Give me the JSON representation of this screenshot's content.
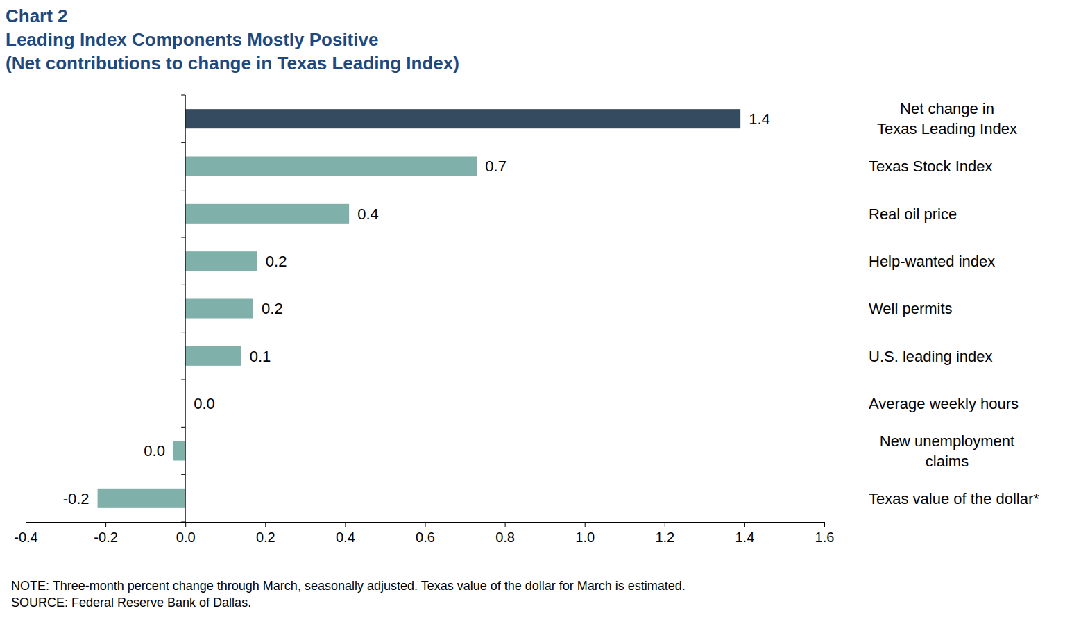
{
  "chart_data": {
    "type": "bar",
    "orientation": "horizontal",
    "title": "Chart 2",
    "subtitle": [
      "Leading Index Components Mostly Positive",
      "(Net contributions to change in Texas Leading Index)"
    ],
    "notes": [
      "NOTE: Three-month percent change through March, seasonally adjusted. Texas value of the dollar for March is estimated.",
      "SOURCE: Federal Reserve Bank of Dallas."
    ],
    "categories": [
      "Net change in\nTexas Leading Index",
      "Texas Stock Index",
      "Real oil price",
      "Help-wanted index",
      "Well permits",
      "U.S. leading index",
      "Average weekly hours",
      "New unemployment\nclaims",
      "Texas value of the dollar*"
    ],
    "values": [
      1.39,
      0.73,
      0.41,
      0.18,
      0.17,
      0.14,
      0.0,
      -0.03,
      -0.22
    ],
    "value_labels": [
      "1.4",
      "0.7",
      "0.4",
      "0.2",
      "0.2",
      "0.1",
      "0.0",
      "0.0",
      "-0.2"
    ],
    "colors": [
      "#344b60",
      "#80b0aa",
      "#80b0aa",
      "#80b0aa",
      "#80b0aa",
      "#80b0aa",
      "#80b0aa",
      "#80b0aa",
      "#80b0aa"
    ],
    "xlim": [
      -0.4,
      1.6
    ],
    "xticks": [
      -0.4,
      -0.2,
      {
        "value": 0,
        "label": "0.0"
      },
      0.2,
      0.4,
      0.6,
      0.8,
      {
        "value": 1,
        "label": "1.0"
      },
      1.2,
      1.4,
      1.6
    ],
    "data_labels": true,
    "grid": false
  }
}
